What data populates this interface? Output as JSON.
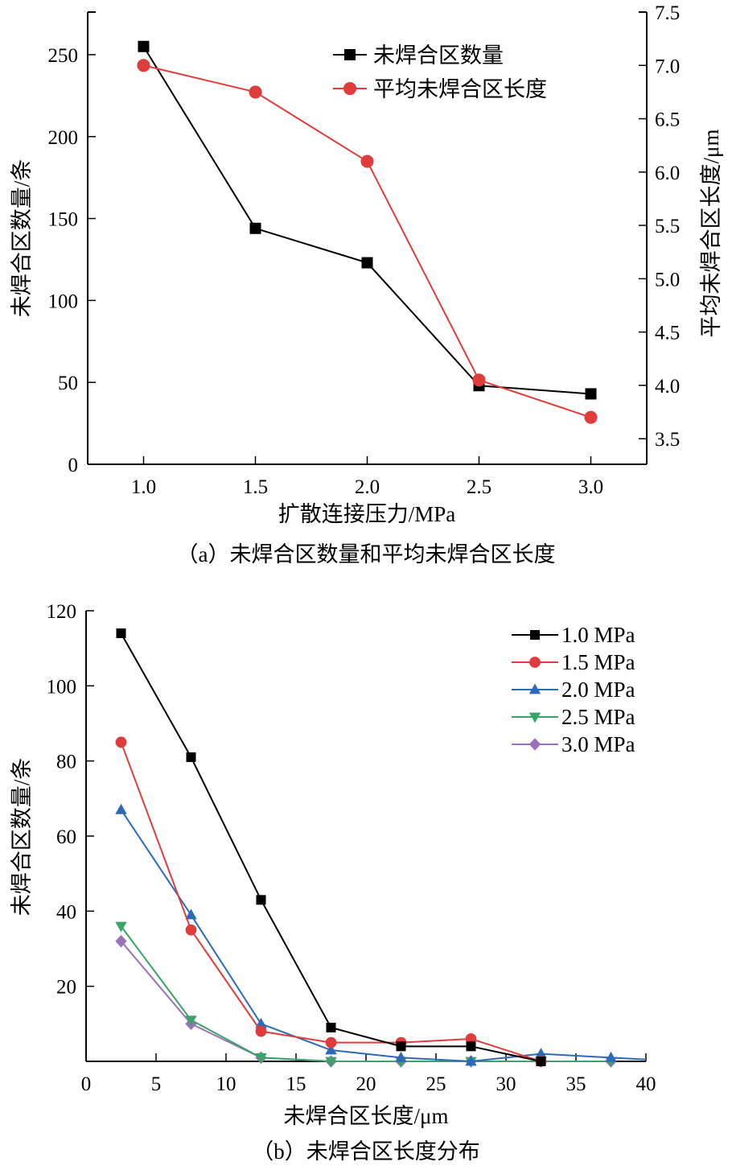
{
  "chart_data": [
    {
      "id": "a",
      "type": "line",
      "caption": "（a）未焊合区数量和平均未焊合区长度",
      "xlabel": "扩散连接压力/MPa",
      "ylabel": "未焊合区数量/条",
      "y2label": "平均未焊合区长度/μm",
      "x": [
        1.0,
        1.5,
        2.0,
        2.5,
        3.0
      ],
      "xlim": [
        0.75,
        3.25
      ],
      "xticks": [
        "1.0",
        "1.5",
        "2.0",
        "2.5",
        "3.0"
      ],
      "ylim": [
        0,
        276
      ],
      "yticks": [
        "0",
        "50",
        "100",
        "150",
        "200",
        "250"
      ],
      "y2lim": [
        3.26,
        7.5
      ],
      "y2ticks": [
        "3.5",
        "4.0",
        "4.5",
        "5.0",
        "5.5",
        "6.0",
        "6.5",
        "7.0",
        "7.5"
      ],
      "grid": false,
      "legend_position": "top-right",
      "series": [
        {
          "name": "未焊合区数量",
          "axis": "left",
          "marker": "square",
          "color": "#000000",
          "values": [
            255,
            144,
            123,
            48,
            43
          ]
        },
        {
          "name": "平均未焊合区长度",
          "axis": "right",
          "marker": "circle",
          "color": "#e03c3c",
          "values": [
            7.0,
            6.75,
            6.1,
            4.05,
            3.7
          ]
        }
      ]
    },
    {
      "id": "b",
      "type": "line",
      "caption": "（b）未焊合区长度分布",
      "xlabel": "未焊合区长度/μm",
      "ylabel": "未焊合区数量/条",
      "xlim": [
        0,
        40
      ],
      "xticks": [
        "0",
        "5",
        "10",
        "15",
        "20",
        "25",
        "30",
        "35",
        "40"
      ],
      "ylim": [
        0,
        120
      ],
      "yticks": [
        "20",
        "40",
        "60",
        "80",
        "100",
        "120"
      ],
      "grid": false,
      "legend_position": "top-right",
      "series": [
        {
          "name": "1.0 MPa",
          "marker": "square",
          "color": "#000000",
          "x": [
            2.5,
            7.5,
            12.5,
            17.5,
            22.5,
            27.5,
            32.5
          ],
          "values": [
            114,
            81,
            43,
            9,
            4,
            4,
            0
          ]
        },
        {
          "name": "1.5 MPa",
          "marker": "circle",
          "color": "#e03c3c",
          "x": [
            2.5,
            7.5,
            12.5,
            17.5,
            22.5,
            27.5,
            32.5
          ],
          "values": [
            85,
            35,
            8,
            5,
            5,
            6,
            0
          ]
        },
        {
          "name": "2.0 MPa",
          "marker": "triangle-up",
          "color": "#2a6ab8",
          "x": [
            2.5,
            7.5,
            12.5,
            17.5,
            22.5,
            27.5,
            32.5,
            37.5,
            40
          ],
          "values": [
            67,
            39,
            10,
            3,
            1,
            0,
            2,
            1,
            0.5
          ],
          "marker_count": 8
        },
        {
          "name": "2.5 MPa",
          "marker": "triangle-down",
          "color": "#3aa36a",
          "x": [
            2.5,
            7.5,
            12.5,
            17.5,
            22.5,
            27.5,
            32.5,
            37.5
          ],
          "values": [
            36,
            11,
            1,
            0,
            0,
            0,
            0,
            0
          ]
        },
        {
          "name": "3.0 MPa",
          "marker": "diamond",
          "color": "#9b72b8",
          "x": [
            2.5,
            7.5,
            12.5,
            17.5,
            22.5,
            27.5,
            32.5,
            37.5
          ],
          "values": [
            32,
            10,
            1,
            0,
            0,
            0,
            0,
            0
          ]
        }
      ]
    }
  ]
}
